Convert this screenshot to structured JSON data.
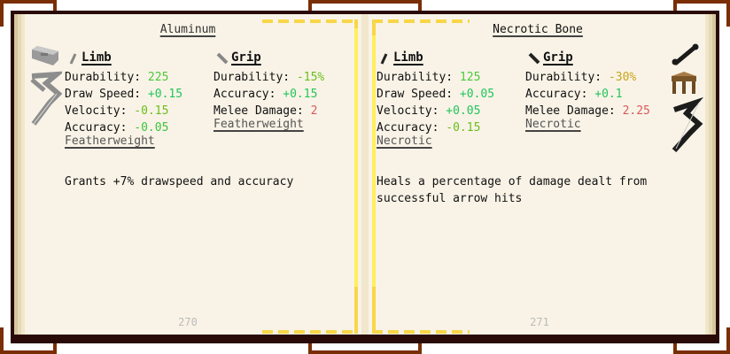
{
  "left_page": {
    "title": "Aluminum",
    "limb": {
      "heading": "Limb",
      "stats": [
        {
          "label": "Durability: ",
          "value": "225",
          "color": "#4cc93a"
        },
        {
          "label": "Draw Speed: ",
          "value": "+0.15",
          "color": "#22c55a"
        },
        {
          "label": "Velocity: ",
          "value": "-0.15",
          "color": "#6abf1c"
        },
        {
          "label": "Accuracy: ",
          "value": "-0.05",
          "color": "#3cc43c"
        }
      ],
      "trait": "Featherweight"
    },
    "grip": {
      "heading": "Grip",
      "stats": [
        {
          "label": "Durability: ",
          "value": "-15%",
          "color": "#6abf1c"
        },
        {
          "label": "Accuracy: ",
          "value": "+0.15",
          "color": "#22c55a"
        },
        {
          "label": "Melee Damage: ",
          "value": "2",
          "color": "#d95a5a"
        }
      ],
      "trait": "Featherweight"
    },
    "description": "Grants +7% drawspeed and accuracy",
    "page_number": "270",
    "icons": [
      "aluminum-ingot-icon",
      "aluminum-crossbow-icon"
    ]
  },
  "right_page": {
    "title": "Necrotic Bone",
    "limb": {
      "heading": "Limb",
      "stats": [
        {
          "label": "Durability: ",
          "value": "125",
          "color": "#4cc93a"
        },
        {
          "label": "Draw Speed: ",
          "value": "+0.05",
          "color": "#22c55a"
        },
        {
          "label": "Velocity: ",
          "value": "+0.05",
          "color": "#22c55a"
        },
        {
          "label": "Accuracy: ",
          "value": "-0.15",
          "color": "#6abf1c"
        }
      ],
      "trait": "Necrotic"
    },
    "grip": {
      "heading": "Grip",
      "stats": [
        {
          "label": "Durability: ",
          "value": "-30%",
          "color": "#c9a418"
        },
        {
          "label": "Accuracy: ",
          "value": "+0.1",
          "color": "#22c55a"
        },
        {
          "label": "Melee Damage: ",
          "value": "2.25",
          "color": "#d95a5a"
        }
      ],
      "trait": "Necrotic"
    },
    "description": "Heals a percentage of damage dealt from\nsuccessful arrow hits",
    "page_number": "271",
    "icons": [
      "necrotic-bone-icon",
      "part-builder-table-icon",
      "bone-crossbow-icon"
    ]
  }
}
